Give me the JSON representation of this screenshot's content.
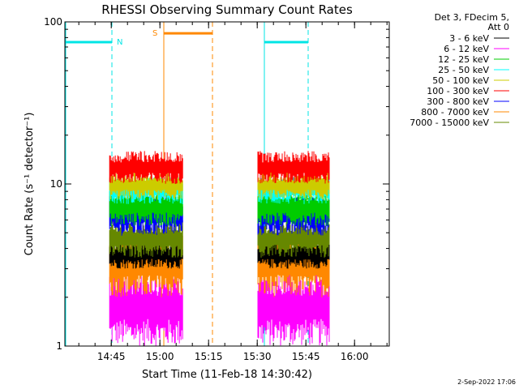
{
  "chart_data": {
    "type": "line",
    "title": "RHESSI Observing Summary Count Rates",
    "xlabel": "Start Time (11-Feb-18 14:30:42)",
    "ylabel": "Count Rate (s⁻¹ detector⁻¹)",
    "yscale": "log",
    "ylim": [
      1,
      100
    ],
    "xlim_minutes": [
      0,
      100
    ],
    "x_ticks": [
      {
        "label": "14:45",
        "minutes": 14.3
      },
      {
        "label": "15:00",
        "minutes": 29.3
      },
      {
        "label": "15:15",
        "minutes": 44.3
      },
      {
        "label": "15:30",
        "minutes": 59.3
      },
      {
        "label": "15:45",
        "minutes": 74.3
      },
      {
        "label": "16:00",
        "minutes": 89.3
      }
    ],
    "y_ticks": [
      {
        "label": "1",
        "value": 1
      },
      {
        "label": "10",
        "value": 10
      },
      {
        "label": "100",
        "value": 100
      }
    ],
    "legend": {
      "placement": "right",
      "header": [
        "Det 3, FDecim 5,",
        "Att 0"
      ],
      "entries": [
        {
          "name": "3 - 6 keV",
          "color": "#000000"
        },
        {
          "name": "6 - 12 keV",
          "color": "#ff00ff"
        },
        {
          "name": "12 - 25 keV",
          "color": "#00cc00"
        },
        {
          "name": "25 - 50 keV",
          "color": "#00ffff"
        },
        {
          "name": "50 - 100 keV",
          "color": "#cccc00"
        },
        {
          "name": "100 - 300 keV",
          "color": "#ff0000"
        },
        {
          "name": "300 - 800 keV",
          "color": "#0000ff"
        },
        {
          "name": "800 - 7000 keV",
          "color": "#ff8800"
        },
        {
          "name": "7000 - 15000 keV",
          "color": "#668800"
        }
      ]
    },
    "data_intervals_minutes": [
      [
        13.8,
        36.5
      ],
      [
        59.5,
        81.5
      ]
    ],
    "bands": [
      {
        "name": "6 - 12 keV",
        "color": "#ff00ff",
        "low": 1.0,
        "high": 3.0
      },
      {
        "name": "800 - 7000 keV",
        "color": "#ff8800",
        "low": 2.0,
        "high": 5.0
      },
      {
        "name": "3 - 6 keV",
        "color": "#000000",
        "low": 3.0,
        "high": 4.5
      },
      {
        "name": "7000 - 15000 keV",
        "color": "#668800",
        "low": 3.5,
        "high": 6.0
      },
      {
        "name": "300 - 800 keV",
        "color": "#0000ff",
        "low": 4.8,
        "high": 8.5
      },
      {
        "name": "12 - 25 keV",
        "color": "#00cc00",
        "low": 5.5,
        "high": 9.5
      },
      {
        "name": "25 - 50 keV",
        "color": "#00ffff",
        "low": 7.5,
        "high": 11.0
      },
      {
        "name": "50 - 100 keV",
        "color": "#cccc00",
        "low": 8.0,
        "high": 12.0
      },
      {
        "name": "100 - 300 keV",
        "color": "#ff0000",
        "low": 10.0,
        "high": 16.0
      }
    ],
    "flags": [
      {
        "label": "N",
        "color": "#00e5e5",
        "start_minutes": 0,
        "end_minutes": 14.5,
        "level": 75,
        "start_line": "solid",
        "end_line": "dashed"
      },
      {
        "label": "",
        "color": "#00e5e5",
        "start_minutes": 61.5,
        "end_minutes": 75,
        "level": 75,
        "start_line": "solid",
        "end_line": "dashed"
      },
      {
        "label": "S",
        "color": "#ff8800",
        "start_minutes": 30.5,
        "end_minutes": 45.5,
        "level": 85,
        "start_line": "solid",
        "end_line": "dashed"
      }
    ],
    "timestamp": "2-Sep-2022 17:06"
  }
}
